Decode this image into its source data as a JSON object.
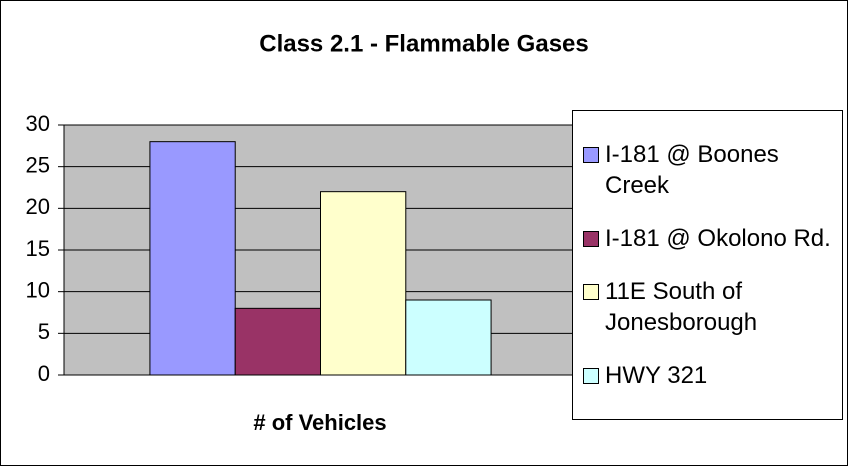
{
  "chart_data": {
    "type": "bar",
    "title": "Class 2.1 - Flammable Gases",
    "x_label": "# of Vehicles",
    "categories": [
      null
    ],
    "series": [
      {
        "name": "I-181 @ Boones Creek",
        "color": "#9999ff",
        "values": [
          28
        ]
      },
      {
        "name": "I-181 @ Okolono Rd.",
        "color": "#993366",
        "values": [
          8
        ]
      },
      {
        "name": "11E South of Jonesborough",
        "color": "#ffffcc",
        "values": [
          22
        ]
      },
      {
        "name": "HWY 321",
        "color": "#ccffff",
        "values": [
          9
        ]
      }
    ],
    "ylim": [
      0,
      30
    ],
    "yticks": [
      0,
      5,
      10,
      15,
      20,
      25,
      30
    ],
    "grid": true,
    "legend": "right"
  }
}
